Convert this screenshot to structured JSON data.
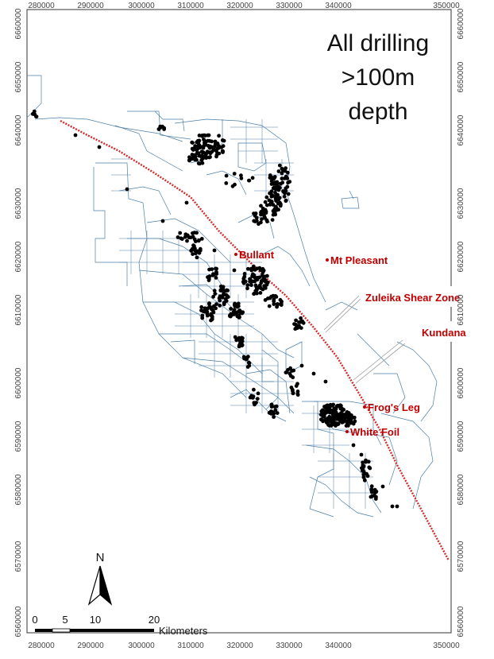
{
  "title_lines": [
    "All drilling",
    ">100m",
    "depth"
  ],
  "x_ticks": [
    "280000",
    "290000",
    "300000",
    "310000",
    "320000",
    "330000",
    "340000",
    "350000"
  ],
  "y_ticks": [
    "6660000",
    "6650000",
    "6640000",
    "6630000",
    "6620000",
    "6610000",
    "6600000",
    "6590000",
    "6580000",
    "6570000",
    "6560000"
  ],
  "places": {
    "bullant": "Bullant",
    "mt_pleasant": "Mt Pleasant",
    "frogs_leg": "Frog's Leg",
    "white_foil": "White Foil"
  },
  "callouts": {
    "zuleika": "Zuleika Shear Zone",
    "kundana": "Kundana"
  },
  "north_label": "N",
  "scale_bar": {
    "labels": [
      "0",
      "5",
      "10",
      "20"
    ],
    "unit": "Kilometers"
  },
  "colors": {
    "tenements": "#4a7fa8",
    "shear_zone": "#d42a2a",
    "drillholes": "#000000",
    "place_labels": "#c00000"
  }
}
